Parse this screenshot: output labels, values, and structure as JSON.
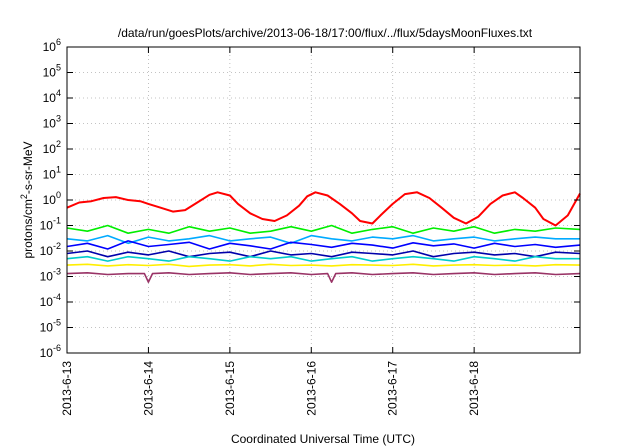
{
  "chart_data": {
    "type": "line",
    "title": "/data/run/goesPlots/archive/2013-06-18/17:00/flux/../flux/5daysMoonFluxes.txt",
    "xlabel": "Coordinated Universal Time (UTC)",
    "ylabel": {
      "base": "protons/cm",
      "sup": "2",
      "rest": "-s-sr-MeV"
    },
    "xlim": [
      0,
      6.3
    ],
    "ylim_exp": [
      -6,
      6
    ],
    "y_scale": "log",
    "grid": true,
    "x_ticks": [
      {
        "label": "2013-6-13",
        "x": 0
      },
      {
        "label": "2013-6-14",
        "x": 1
      },
      {
        "label": "2013-6-15",
        "x": 2
      },
      {
        "label": "2013-6-16",
        "x": 3
      },
      {
        "label": "2013-6-17",
        "x": 4
      },
      {
        "label": "2013-6-18",
        "x": 5
      }
    ],
    "y_ticks": [
      {
        "base": "10",
        "exp": "6",
        "v": 6
      },
      {
        "base": "10",
        "exp": "5",
        "v": 5
      },
      {
        "base": "10",
        "exp": "4",
        "v": 4
      },
      {
        "base": "10",
        "exp": "3",
        "v": 3
      },
      {
        "base": "10",
        "exp": "2",
        "v": 2
      },
      {
        "base": "10",
        "exp": "1",
        "v": 1
      },
      {
        "base": "10",
        "exp": "0",
        "v": 0
      },
      {
        "base": "10",
        "exp": "-1",
        "v": -1
      },
      {
        "base": "10",
        "exp": "-2",
        "v": -2
      },
      {
        "base": "10",
        "exp": "-3",
        "v": -3
      },
      {
        "base": "10",
        "exp": "-4",
        "v": -4
      },
      {
        "base": "10",
        "exp": "-5",
        "v": -5
      },
      {
        "base": "10",
        "exp": "-6",
        "v": -6
      }
    ],
    "series": [
      {
        "color": "#ff0000",
        "x": [
          0,
          0.15,
          0.3,
          0.45,
          0.6,
          0.75,
          0.9,
          1.0,
          1.15,
          1.3,
          1.45,
          1.6,
          1.75,
          1.85,
          2.0,
          2.1,
          2.25,
          2.4,
          2.55,
          2.7,
          2.85,
          2.95,
          3.05,
          3.2,
          3.35,
          3.5,
          3.6,
          3.75,
          3.85,
          4.0,
          4.15,
          4.3,
          4.45,
          4.6,
          4.75,
          4.9,
          5.05,
          5.2,
          5.35,
          5.5,
          5.6,
          5.75,
          5.85,
          6.0,
          6.15,
          6.3
        ],
        "y": [
          0.5,
          0.8,
          0.9,
          1.2,
          1.3,
          1.0,
          0.9,
          0.7,
          0.5,
          0.35,
          0.4,
          0.8,
          1.6,
          2.0,
          1.5,
          0.7,
          0.3,
          0.18,
          0.15,
          0.25,
          0.6,
          1.4,
          2.0,
          1.5,
          0.7,
          0.3,
          0.15,
          0.12,
          0.25,
          0.7,
          1.7,
          2.0,
          1.2,
          0.5,
          0.2,
          0.12,
          0.22,
          0.7,
          1.5,
          2.0,
          1.2,
          0.5,
          0.18,
          0.1,
          0.25,
          1.8
        ]
      },
      {
        "color": "#00ee00",
        "x": [
          0,
          0.25,
          0.5,
          0.75,
          1.0,
          1.25,
          1.5,
          1.75,
          2.0,
          2.25,
          2.5,
          2.75,
          3.0,
          3.25,
          3.5,
          3.75,
          4.0,
          4.25,
          4.5,
          4.75,
          5.0,
          5.25,
          5.5,
          5.75,
          6.0,
          6.3
        ],
        "y": [
          0.08,
          0.06,
          0.1,
          0.05,
          0.07,
          0.05,
          0.09,
          0.06,
          0.08,
          0.05,
          0.06,
          0.09,
          0.06,
          0.1,
          0.05,
          0.07,
          0.09,
          0.05,
          0.08,
          0.06,
          0.09,
          0.05,
          0.07,
          0.06,
          0.08,
          0.07
        ]
      },
      {
        "color": "#00aaff",
        "x": [
          0,
          0.25,
          0.5,
          0.75,
          1.0,
          1.25,
          1.5,
          1.75,
          2.0,
          2.25,
          2.5,
          2.75,
          3.0,
          3.25,
          3.5,
          3.75,
          4.0,
          4.25,
          4.5,
          4.75,
          5.0,
          5.25,
          5.5,
          5.75,
          6.0,
          6.3
        ],
        "y": [
          0.03,
          0.025,
          0.04,
          0.02,
          0.035,
          0.025,
          0.03,
          0.04,
          0.025,
          0.03,
          0.035,
          0.02,
          0.04,
          0.03,
          0.025,
          0.035,
          0.03,
          0.04,
          0.025,
          0.03,
          0.035,
          0.025,
          0.03,
          0.035,
          0.03,
          0.03
        ]
      },
      {
        "color": "#0000ff",
        "x": [
          0,
          0.25,
          0.5,
          0.75,
          1.0,
          1.25,
          1.5,
          1.75,
          2.0,
          2.25,
          2.5,
          2.75,
          3.0,
          3.25,
          3.5,
          3.75,
          4.0,
          4.25,
          4.5,
          4.75,
          5.0,
          5.25,
          5.5,
          5.75,
          6.0,
          6.3
        ],
        "y": [
          0.015,
          0.02,
          0.012,
          0.025,
          0.015,
          0.018,
          0.022,
          0.012,
          0.02,
          0.016,
          0.012,
          0.022,
          0.018,
          0.014,
          0.02,
          0.017,
          0.013,
          0.021,
          0.016,
          0.019,
          0.013,
          0.02,
          0.015,
          0.018,
          0.014,
          0.017
        ]
      },
      {
        "color": "#0000aa",
        "x": [
          0,
          0.25,
          0.5,
          0.75,
          1.0,
          1.25,
          1.5,
          1.75,
          2.0,
          2.25,
          2.5,
          2.75,
          3.0,
          3.25,
          3.5,
          3.75,
          4.0,
          4.25,
          4.5,
          4.75,
          5.0,
          5.25,
          5.5,
          5.75,
          6.0,
          6.3
        ],
        "y": [
          0.008,
          0.01,
          0.006,
          0.009,
          0.007,
          0.01,
          0.006,
          0.008,
          0.009,
          0.006,
          0.01,
          0.007,
          0.008,
          0.006,
          0.009,
          0.008,
          0.007,
          0.01,
          0.006,
          0.008,
          0.009,
          0.007,
          0.008,
          0.006,
          0.009,
          0.008
        ]
      },
      {
        "color": "#00cccc",
        "x": [
          0,
          0.25,
          0.5,
          0.75,
          1.0,
          1.25,
          1.5,
          1.75,
          2.0,
          2.25,
          2.5,
          2.75,
          3.0,
          3.25,
          3.5,
          3.75,
          4.0,
          4.25,
          4.5,
          4.75,
          5.0,
          5.25,
          5.5,
          5.75,
          6.0,
          6.3
        ],
        "y": [
          0.005,
          0.006,
          0.004,
          0.006,
          0.005,
          0.004,
          0.006,
          0.005,
          0.004,
          0.006,
          0.005,
          0.006,
          0.004,
          0.005,
          0.006,
          0.004,
          0.005,
          0.006,
          0.005,
          0.004,
          0.006,
          0.005,
          0.004,
          0.006,
          0.005,
          0.005
        ]
      },
      {
        "color": "#ffee00",
        "x": [
          0,
          0.25,
          0.5,
          0.75,
          1.0,
          1.25,
          1.5,
          1.75,
          2.0,
          2.25,
          2.5,
          2.75,
          3.0,
          3.25,
          3.5,
          3.75,
          4.0,
          4.25,
          4.5,
          4.75,
          5.0,
          5.25,
          5.5,
          5.75,
          6.0,
          6.3
        ],
        "y": [
          0.0028,
          0.003,
          0.0026,
          0.0029,
          0.0027,
          0.003,
          0.0025,
          0.0028,
          0.0029,
          0.0026,
          0.003,
          0.0027,
          0.0028,
          0.0026,
          0.0029,
          0.0028,
          0.0027,
          0.003,
          0.0026,
          0.0028,
          0.0029,
          0.0027,
          0.0028,
          0.0026,
          0.0029,
          0.0028
        ]
      },
      {
        "color": "#993366",
        "x": [
          0,
          0.25,
          0.5,
          0.75,
          0.95,
          1.0,
          1.05,
          1.25,
          1.5,
          1.75,
          2.0,
          2.25,
          2.5,
          2.75,
          3.0,
          3.2,
          3.25,
          3.3,
          3.5,
          3.75,
          4.0,
          4.25,
          4.5,
          4.75,
          5.0,
          5.25,
          5.5,
          5.75,
          6.0,
          6.3
        ],
        "y": [
          0.0013,
          0.0014,
          0.0012,
          0.0013,
          0.0013,
          0.0006,
          0.0013,
          0.0014,
          0.0012,
          0.0013,
          0.0014,
          0.0012,
          0.0013,
          0.0014,
          0.0012,
          0.0013,
          0.0006,
          0.0013,
          0.0014,
          0.0012,
          0.0013,
          0.0014,
          0.0012,
          0.0013,
          0.0014,
          0.0012,
          0.0013,
          0.0014,
          0.0012,
          0.0013
        ]
      }
    ]
  }
}
